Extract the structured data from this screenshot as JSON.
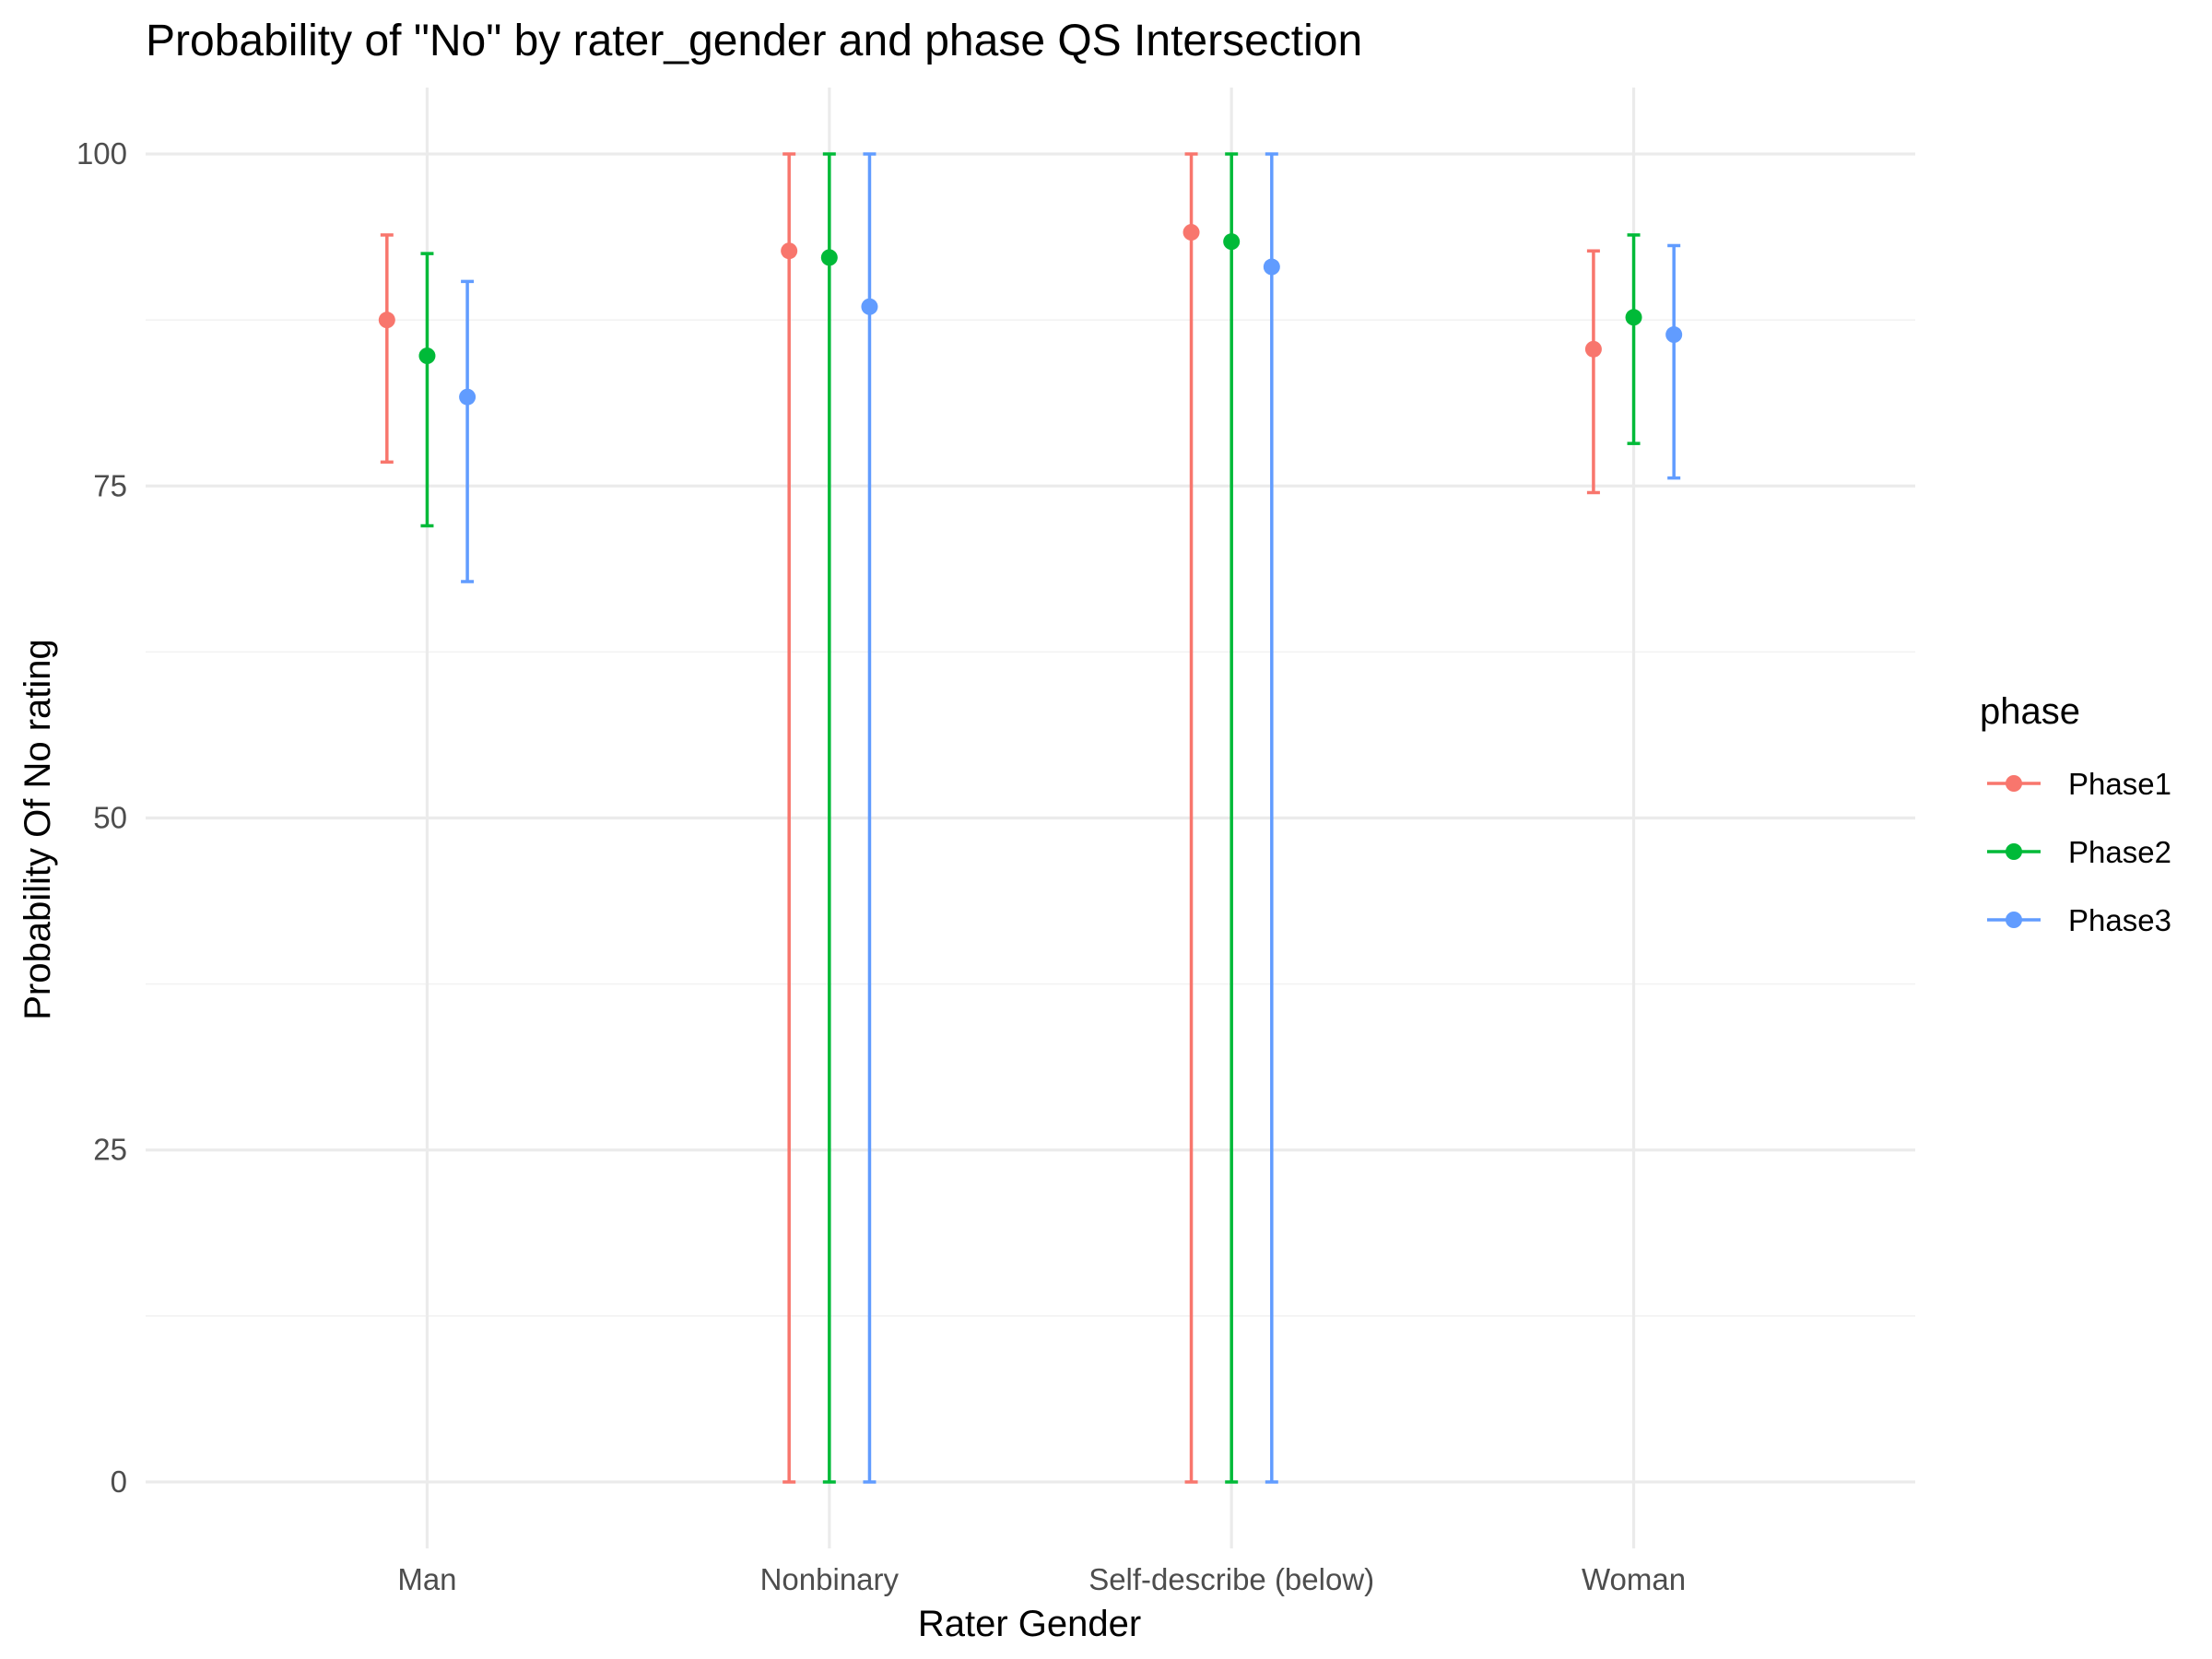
{
  "chart_data": {
    "type": "errorbar",
    "title": "Probability of \"No\" by rater_gender and  phase  QS Intersection",
    "xlabel": "Rater Gender",
    "ylabel": "Probability Of No rating",
    "categories": [
      "Man",
      "Nonbinary",
      "Self-describe (below)",
      "Woman"
    ],
    "ylim": [
      -5,
      105
    ],
    "yticks": [
      0,
      25,
      50,
      75,
      100
    ],
    "grid": true,
    "legend": {
      "title": "phase",
      "position": "right"
    },
    "series": [
      {
        "name": "Phase1",
        "color": "#F8766D",
        "values": [
          87.5,
          92.7,
          94.1,
          85.3
        ],
        "lower": [
          76.8,
          0,
          0,
          74.5
        ],
        "upper": [
          93.9,
          100,
          100,
          92.7
        ]
      },
      {
        "name": "Phase2",
        "color": "#00BA38",
        "values": [
          84.8,
          92.2,
          93.4,
          87.7
        ],
        "lower": [
          72.0,
          0,
          0,
          78.2
        ],
        "upper": [
          92.5,
          100,
          100,
          93.9
        ]
      },
      {
        "name": "Phase3",
        "color": "#619CFF",
        "values": [
          81.7,
          88.5,
          91.5,
          86.4
        ],
        "lower": [
          67.8,
          0,
          0,
          75.6
        ],
        "upper": [
          90.4,
          100,
          100,
          93.1
        ]
      }
    ]
  }
}
